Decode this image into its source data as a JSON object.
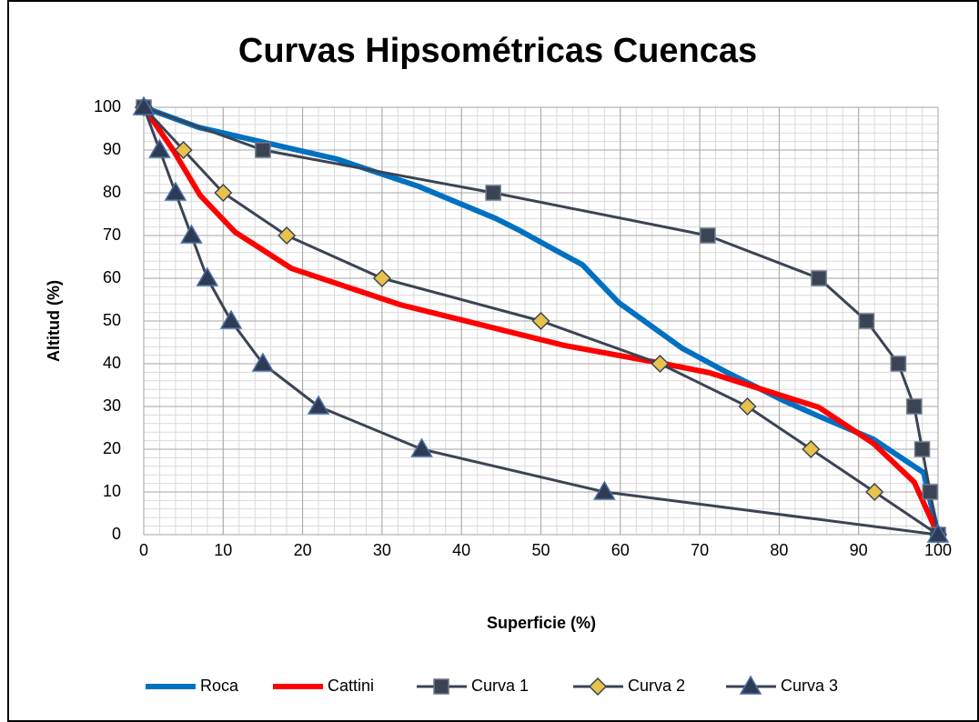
{
  "chart_data": {
    "type": "line",
    "title": "Curvas Hipsométricas Cuencas",
    "xlabel": "Superficie (%)",
    "ylabel": "Altitud (%)",
    "xlim": [
      0,
      100
    ],
    "ylim": [
      0,
      100
    ],
    "xticks": [
      0,
      10,
      20,
      30,
      40,
      50,
      60,
      70,
      80,
      90,
      100
    ],
    "yticks": [
      0,
      10,
      20,
      30,
      40,
      50,
      60,
      70,
      80,
      90,
      100
    ],
    "grid": true,
    "minor_grid": 2,
    "legend": "bottom",
    "series": [
      {
        "name": "Roca",
        "color": "#0070c0",
        "marker": "none",
        "x": [
          0,
          6.9,
          24.3,
          34.6,
          44.3,
          47.2,
          51.8,
          55.2,
          59.8,
          67.8,
          73.5,
          80.4,
          85,
          91.9,
          98.2,
          100
        ],
        "values": [
          100,
          95.3,
          87.9,
          81.5,
          74,
          71.3,
          66.6,
          63.2,
          54.3,
          43.6,
          37.9,
          31.5,
          27.7,
          22.3,
          14.5,
          0
        ]
      },
      {
        "name": "Cattini",
        "color": "#ff0000",
        "marker": "none",
        "x": [
          0,
          3.7,
          7.1,
          11.5,
          18.6,
          32.3,
          43.8,
          52.9,
          65.5,
          71.2,
          85,
          91.9,
          97,
          100
        ],
        "values": [
          100,
          90,
          79.4,
          70.8,
          62.3,
          53.8,
          48.5,
          44.3,
          40,
          37.9,
          29.8,
          21.3,
          12.3,
          0
        ]
      },
      {
        "name": "Curva 1",
        "color": "#3b4454",
        "marker": "square",
        "x": [
          0,
          15,
          44,
          71,
          85,
          91,
          95,
          97,
          98,
          99,
          100
        ],
        "values": [
          100,
          90,
          80,
          70,
          60,
          50,
          40,
          30,
          20,
          10,
          0
        ]
      },
      {
        "name": "Curva 2",
        "color": "#3b4454",
        "marker": "diamond",
        "x": [
          0,
          5,
          10,
          18,
          30,
          50,
          65,
          76,
          84,
          92,
          100
        ],
        "values": [
          100,
          90,
          80,
          70,
          60,
          50,
          40,
          30,
          20,
          10,
          0
        ]
      },
      {
        "name": "Curva 3",
        "color": "#3b4454",
        "marker": "triangle",
        "x": [
          0,
          2,
          4,
          6,
          8,
          11,
          15,
          22,
          35,
          58,
          100
        ],
        "values": [
          100,
          90,
          80,
          70,
          60,
          50,
          40,
          30,
          20,
          10,
          0
        ]
      }
    ]
  }
}
